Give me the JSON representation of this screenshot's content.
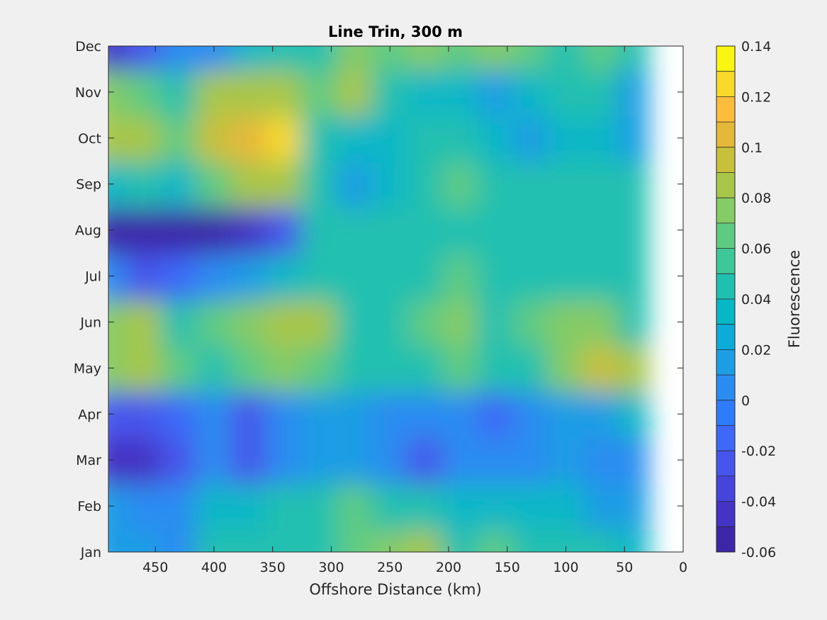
{
  "chart_data": {
    "type": "heatmap",
    "title": "Line Trin, 300 m",
    "xlabel": "Offshore Distance (km)",
    "ylabel": "",
    "x_reversed": true,
    "xlim": [
      0,
      490
    ],
    "ylim": [
      "Jan",
      "Dec"
    ],
    "xticks": [
      "450",
      "400",
      "350",
      "300",
      "250",
      "200",
      "150",
      "100",
      "50",
      "0"
    ],
    "yticks": [
      "Jan",
      "Feb",
      "Mar",
      "Apr",
      "May",
      "Jun",
      "Jul",
      "Aug",
      "Sep",
      "Oct",
      "Nov",
      "Dec"
    ],
    "x_km": [
      490,
      460,
      430,
      400,
      370,
      340,
      310,
      280,
      250,
      220,
      190,
      160,
      130,
      100,
      70,
      40
    ],
    "months": [
      "Jan",
      "Feb",
      "Mar",
      "Apr",
      "May",
      "Jun",
      "Jul",
      "Aug",
      "Sep",
      "Oct",
      "Nov",
      "Dec"
    ],
    "values": [
      [
        0.02,
        0.02,
        0.01,
        0.05,
        0.04,
        0.04,
        0.05,
        0.06,
        0.07,
        0.08,
        0.05,
        0.06,
        0.05,
        0.04,
        0.04,
        0.03
      ],
      [
        0.02,
        0.01,
        0.01,
        0.03,
        0.03,
        0.04,
        0.05,
        0.06,
        0.05,
        0.04,
        0.03,
        0.03,
        0.03,
        0.03,
        0.02,
        0.02
      ],
      [
        -0.04,
        -0.04,
        -0.03,
        0.01,
        -0.02,
        0.01,
        0.02,
        0.02,
        0.01,
        -0.03,
        0.01,
        0.01,
        0.01,
        0.02,
        0.0,
        0.01
      ],
      [
        -0.02,
        -0.02,
        -0.01,
        0.0,
        -0.02,
        0.0,
        0.02,
        0.02,
        0.01,
        0.0,
        0.01,
        -0.01,
        0.01,
        0.02,
        0.02,
        0.03
      ],
      [
        0.07,
        0.09,
        0.06,
        0.04,
        0.06,
        0.07,
        0.06,
        0.05,
        0.04,
        0.05,
        0.06,
        0.05,
        0.05,
        0.07,
        0.1,
        0.08
      ],
      [
        0.07,
        0.08,
        0.05,
        0.06,
        0.07,
        0.08,
        0.09,
        0.05,
        0.04,
        0.06,
        0.07,
        0.04,
        0.06,
        0.07,
        0.07,
        0.05
      ],
      [
        0.0,
        -0.02,
        -0.01,
        0.0,
        0.02,
        0.03,
        0.05,
        0.05,
        0.04,
        0.05,
        0.06,
        0.04,
        0.05,
        0.05,
        0.04,
        0.04
      ],
      [
        -0.05,
        -0.06,
        -0.05,
        -0.06,
        -0.04,
        -0.03,
        0.04,
        0.05,
        0.04,
        0.05,
        0.04,
        0.04,
        0.04,
        0.04,
        0.05,
        0.05
      ],
      [
        0.03,
        0.04,
        0.03,
        0.06,
        0.08,
        0.09,
        0.04,
        0.02,
        0.03,
        0.05,
        0.06,
        0.04,
        0.04,
        0.04,
        0.05,
        0.04
      ],
      [
        0.09,
        0.08,
        0.06,
        0.1,
        0.11,
        0.12,
        0.05,
        0.03,
        0.03,
        0.04,
        0.04,
        0.03,
        0.02,
        0.03,
        0.03,
        0.02
      ],
      [
        0.07,
        0.06,
        0.05,
        0.08,
        0.09,
        0.08,
        0.06,
        0.08,
        0.04,
        0.03,
        0.03,
        0.02,
        0.03,
        0.04,
        0.04,
        0.02
      ],
      [
        -0.04,
        -0.02,
        0.0,
        0.0,
        0.03,
        0.04,
        0.05,
        0.07,
        0.06,
        0.07,
        0.06,
        0.07,
        0.06,
        0.05,
        0.06,
        0.05
      ]
    ],
    "colorbar": {
      "label": "Fluorescence",
      "ticks": [
        "0.14",
        "0.12",
        "0.1",
        "0.08",
        "0.06",
        "0.04",
        "0.02",
        "0",
        "-0.02",
        "-0.04",
        "-0.06"
      ],
      "min": -0.06,
      "max": 0.14,
      "levels": 20,
      "colors": [
        "#3e26a8",
        "#4433c4",
        "#4744dc",
        "#4656ec",
        "#3e69f8",
        "#2f7cfb",
        "#2a8cf1",
        "#1d9de4",
        "#0cabd8",
        "#07b7c6",
        "#20c0b0",
        "#3ec799",
        "#5fcb82",
        "#85cb66",
        "#a8c64a",
        "#c8c03a",
        "#e6b83a",
        "#fcbc3d",
        "#f8d92c",
        "#f9f614"
      ]
    },
    "grid": false,
    "legend": "none"
  }
}
